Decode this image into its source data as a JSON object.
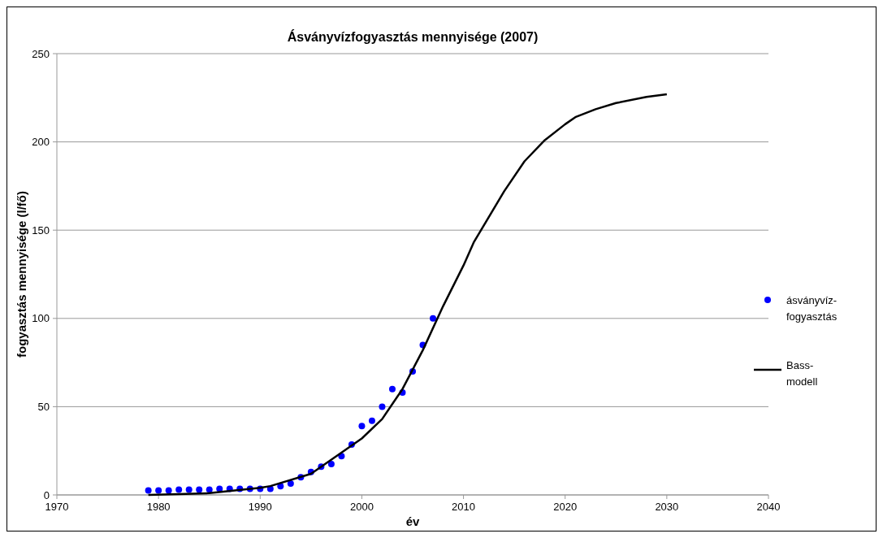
{
  "chart_data": {
    "type": "scatter",
    "title": "Ásványvízfogyasztás mennyisége (2007)",
    "xlabel": "év",
    "ylabel": "fogyasztás mennyisége (l/fő)",
    "xlim": [
      1970,
      2040
    ],
    "xticks": [
      1970,
      1980,
      1990,
      2000,
      2010,
      2020,
      2030,
      2040
    ],
    "ylim": [
      0,
      250
    ],
    "yticks": [
      0,
      50,
      100,
      150,
      200,
      250
    ],
    "grid": "y",
    "legend": "right",
    "series": [
      {
        "name": "ásványvíz-fogyasztás",
        "marker": "circle",
        "color": "#0000ff",
        "x": [
          1979,
          1980,
          1981,
          1982,
          1983,
          1984,
          1985,
          1986,
          1987,
          1988,
          1989,
          1990,
          1991,
          1992,
          1993,
          1994,
          1995,
          1996,
          1997,
          1998,
          1999,
          2000,
          2001,
          2002,
          2003,
          2004,
          2005,
          2006,
          2007
        ],
        "values": [
          2.5,
          2.5,
          2.5,
          3,
          3,
          3,
          3,
          3.5,
          3.5,
          3.5,
          3.5,
          3.5,
          3.5,
          5,
          6.5,
          10,
          13,
          16,
          17.5,
          22,
          28.5,
          39,
          42,
          50,
          60,
          58,
          70,
          85,
          100
        ]
      },
      {
        "name": "Bass-modell",
        "type": "line",
        "marker": "none",
        "line_style": "solid",
        "color": "#000000",
        "x": [
          1979,
          1985,
          1990,
          1991,
          1995,
          2000,
          2002,
          2004,
          2006,
          2008,
          2010,
          2011,
          2014,
          2016,
          2018,
          2020,
          2021,
          2023,
          2025,
          2028,
          2030
        ],
        "values": [
          0,
          1,
          4,
          5,
          12,
          32,
          43,
          60,
          82,
          107,
          130,
          143,
          172,
          189,
          201,
          210,
          214,
          218.5,
          222,
          225.5,
          227
        ]
      }
    ]
  }
}
